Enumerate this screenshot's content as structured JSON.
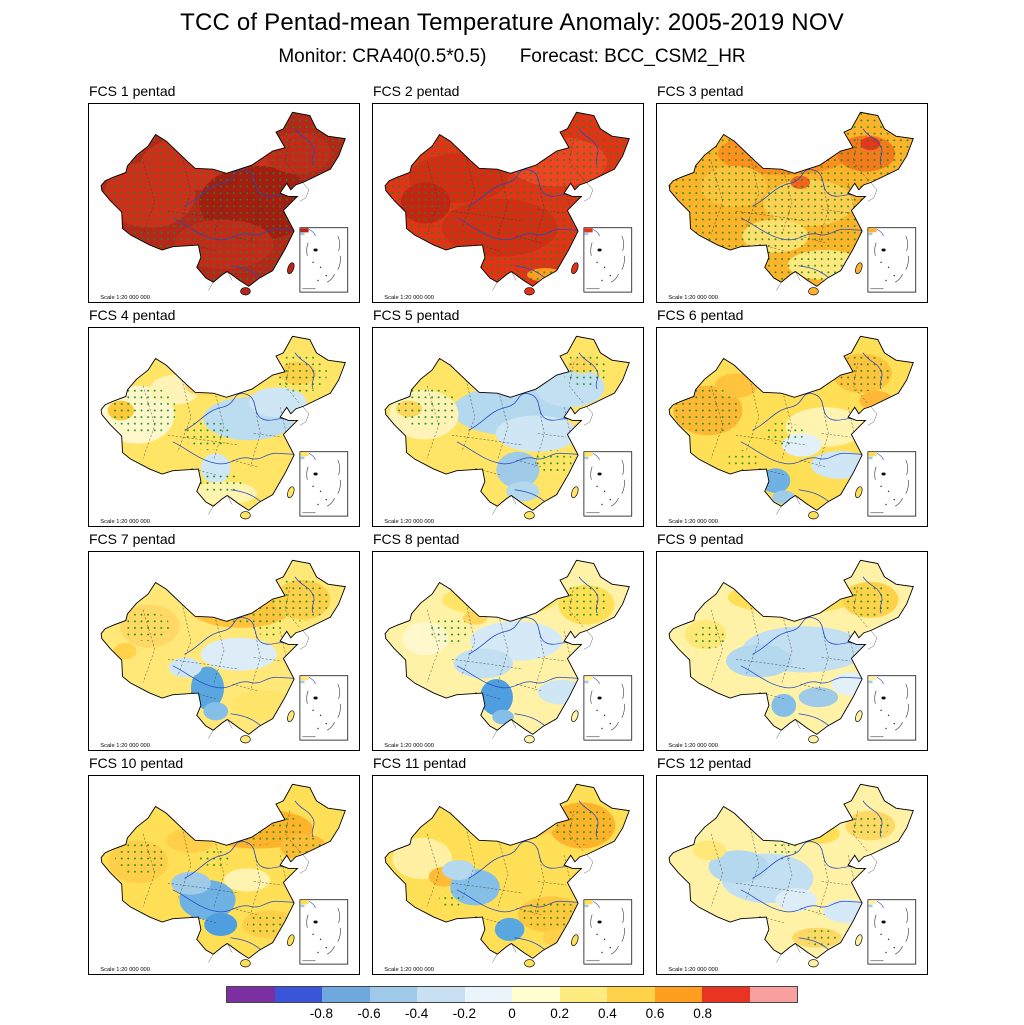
{
  "figure": {
    "title": "TCC of Pentad-mean Temperature Anomaly: 2005-2019 NOV",
    "monitor": "Monitor: CRA40(0.5*0.5)",
    "forecast": "Forecast: BCC_CSM2_HR",
    "scale_label": "Scale 1:20 000 000",
    "stipple_color": "#0f9410",
    "outline_color": "#000000",
    "river_color": "#1f49c7"
  },
  "panels": [
    {
      "label": "FCS 1 pentad",
      "base": "#b5261b",
      "stipple_full": true,
      "stipple_areas": [],
      "blobs": [
        [
          150,
          70,
          90,
          35,
          "#cf2e1d"
        ],
        [
          70,
          110,
          55,
          40,
          "#cf2e1d"
        ],
        [
          200,
          120,
          70,
          45,
          "#a51c12"
        ],
        [
          250,
          60,
          40,
          25,
          "#c42a1b"
        ],
        [
          160,
          170,
          60,
          30,
          "#c42a1b"
        ]
      ]
    },
    {
      "label": "FCS 2 pentad",
      "base": "#e13318",
      "stipple_full": true,
      "stipple_areas": [],
      "blobs": [
        [
          220,
          70,
          60,
          30,
          "#ef4423"
        ],
        [
          100,
          90,
          60,
          30,
          "#d62b15"
        ],
        [
          150,
          150,
          70,
          35,
          "#d62b15"
        ],
        [
          60,
          120,
          30,
          25,
          "#c42413"
        ],
        [
          205,
          207,
          22,
          8,
          "#ff9e1f"
        ]
      ]
    },
    {
      "label": "FCS 3 pentad",
      "base": "#ffb32b",
      "stipple_full": true,
      "stipple_areas": [],
      "blobs": [
        [
          150,
          60,
          80,
          26,
          "#ff9020"
        ],
        [
          250,
          60,
          35,
          22,
          "#f57a1c"
        ],
        [
          90,
          100,
          40,
          25,
          "#ffc33e"
        ],
        [
          180,
          120,
          55,
          28,
          "#ffcf52"
        ],
        [
          140,
          160,
          40,
          20,
          "#ffdf6e"
        ],
        [
          200,
          195,
          45,
          18,
          "#ffe87e"
        ],
        [
          255,
          48,
          12,
          8,
          "#e8351f"
        ],
        [
          170,
          95,
          12,
          8,
          "#f4641f"
        ]
      ]
    },
    {
      "label": "FCS 4 pentad",
      "base": "#ffe466",
      "stipple_full": false,
      "stipple_areas": [
        [
          253,
          55,
          32,
          24
        ],
        [
          62,
          100,
          40,
          30
        ],
        [
          140,
          130,
          28,
          18
        ],
        [
          155,
          188,
          26,
          14
        ]
      ],
      "blobs": [
        [
          55,
          105,
          45,
          35,
          "#fff8cd"
        ],
        [
          100,
          75,
          30,
          18,
          "#fff3b8"
        ],
        [
          190,
          110,
          55,
          26,
          "#bcdcf0"
        ],
        [
          225,
          90,
          35,
          18,
          "#cfe6f5"
        ],
        [
          250,
          55,
          22,
          14,
          "#ffcf4a"
        ],
        [
          35,
          100,
          16,
          12,
          "#ffc93e"
        ],
        [
          150,
          170,
          18,
          18,
          "#cfe6f5"
        ],
        [
          160,
          200,
          40,
          14,
          "#fff3b0"
        ],
        [
          135,
          70,
          22,
          12,
          "#ffd65a"
        ]
      ]
    },
    {
      "label": "FCS 5 pentad",
      "base": "#ffe466",
      "stipple_full": false,
      "stipple_areas": [
        [
          253,
          50,
          28,
          20
        ],
        [
          62,
          95,
          36,
          26
        ],
        [
          215,
          162,
          24,
          14
        ]
      ],
      "blobs": [
        [
          165,
          100,
          72,
          30,
          "#b4d8ee"
        ],
        [
          235,
          72,
          42,
          24,
          "#c3e0f2"
        ],
        [
          195,
          128,
          50,
          22,
          "#cfe6f5"
        ],
        [
          58,
          105,
          42,
          30,
          "#fff3b8"
        ],
        [
          172,
          172,
          26,
          22,
          "#9fcbe8"
        ],
        [
          178,
          198,
          20,
          12,
          "#b4d8ee"
        ],
        [
          40,
          98,
          16,
          10,
          "#ffd65a"
        ],
        [
          250,
          45,
          18,
          10,
          "#ffd65a"
        ]
      ]
    },
    {
      "label": "FCS 6 pentad",
      "base": "#ffdf55",
      "stipple_full": false,
      "stipple_areas": [
        [
          58,
          100,
          40,
          28
        ],
        [
          245,
          55,
          34,
          22
        ],
        [
          150,
          128,
          24,
          14
        ],
        [
          100,
          160,
          18,
          12
        ]
      ],
      "blobs": [
        [
          58,
          100,
          42,
          30,
          "#ffb835"
        ],
        [
          92,
          70,
          26,
          15,
          "#ffc33e"
        ],
        [
          245,
          55,
          36,
          24,
          "#ffc33e"
        ],
        [
          262,
          88,
          20,
          12,
          "#ffb835"
        ],
        [
          200,
          120,
          48,
          24,
          "#fff3b0"
        ],
        [
          218,
          166,
          35,
          17,
          "#cfe6f5"
        ],
        [
          140,
          185,
          18,
          15,
          "#6fb1e3"
        ],
        [
          150,
          205,
          14,
          8,
          "#9fcbe8"
        ],
        [
          172,
          142,
          24,
          14,
          "#e2f0f9"
        ]
      ]
    },
    {
      "label": "FCS 7 pentad",
      "base": "#ffe878",
      "stipple_full": false,
      "stipple_areas": [
        [
          252,
          58,
          36,
          26
        ],
        [
          182,
          68,
          48,
          18
        ],
        [
          66,
          90,
          28,
          18
        ],
        [
          215,
          90,
          20,
          12
        ]
      ],
      "blobs": [
        [
          180,
          68,
          62,
          24,
          "#ffc33e"
        ],
        [
          255,
          58,
          34,
          24,
          "#ffcf4a"
        ],
        [
          70,
          90,
          36,
          26,
          "#ffd865"
        ],
        [
          178,
          124,
          46,
          20,
          "#dcedf8"
        ],
        [
          140,
          165,
          20,
          26,
          "#5aa7e0"
        ],
        [
          150,
          193,
          15,
          11,
          "#85bfe8"
        ],
        [
          113,
          140,
          20,
          12,
          "#cfe6f5"
        ],
        [
          208,
          186,
          40,
          18,
          "#ffe46a"
        ],
        [
          40,
          120,
          14,
          10,
          "#ffd24a"
        ]
      ]
    },
    {
      "label": "FCS 8 pentad",
      "base": "#fff2a6",
      "stipple_full": false,
      "stipple_areas": [
        [
          252,
          60,
          30,
          22
        ],
        [
          90,
          95,
          24,
          16
        ],
        [
          160,
          60,
          30,
          14
        ]
      ],
      "blobs": [
        [
          170,
          108,
          56,
          24,
          "#d5eaf6"
        ],
        [
          130,
          135,
          36,
          18,
          "#c3e0f2"
        ],
        [
          146,
          176,
          20,
          22,
          "#4f9ee0"
        ],
        [
          154,
          200,
          13,
          9,
          "#85bfe8"
        ],
        [
          150,
          58,
          70,
          20,
          "#ffe466"
        ],
        [
          255,
          64,
          34,
          24,
          "#ffdf55"
        ],
        [
          226,
          170,
          30,
          15,
          "#cfe6f5"
        ],
        [
          120,
          80,
          15,
          8,
          "#ffd65a"
        ],
        [
          60,
          105,
          28,
          20,
          "#fff8cd"
        ]
      ]
    },
    {
      "label": "FCS 9 pentad",
      "base": "#fff2a6",
      "stipple_full": false,
      "stipple_areas": [
        [
          253,
          58,
          28,
          20
        ],
        [
          165,
          55,
          46,
          16
        ],
        [
          60,
          103,
          20,
          14
        ]
      ],
      "blobs": [
        [
          175,
          118,
          75,
          28,
          "#c3e0f2"
        ],
        [
          120,
          132,
          40,
          20,
          "#b4d8ee"
        ],
        [
          160,
          55,
          78,
          20,
          "#ffdf55"
        ],
        [
          255,
          58,
          34,
          22,
          "#ffd24a"
        ],
        [
          192,
          176,
          24,
          12,
          "#9fcbe8"
        ],
        [
          150,
          186,
          15,
          14,
          "#85bfe8"
        ],
        [
          232,
          160,
          24,
          14,
          "#e2f0f9"
        ],
        [
          55,
          100,
          25,
          18,
          "#ffe878"
        ]
      ]
    },
    {
      "label": "FCS 10 pentad",
      "base": "#ffdf55",
      "stipple_full": false,
      "stipple_areas": [
        [
          200,
          64,
          58,
          20
        ],
        [
          256,
          86,
          24,
          13
        ],
        [
          58,
          100,
          30,
          20
        ],
        [
          216,
          180,
          28,
          14
        ],
        [
          150,
          100,
          20,
          10
        ]
      ],
      "blobs": [
        [
          200,
          64,
          68,
          24,
          "#ffb32b"
        ],
        [
          256,
          86,
          28,
          16,
          "#ffbb35"
        ],
        [
          120,
          78,
          30,
          15,
          "#ffcf4a"
        ],
        [
          56,
          104,
          36,
          26,
          "#ffcf4a"
        ],
        [
          140,
          150,
          34,
          24,
          "#6fb1e3"
        ],
        [
          120,
          130,
          24,
          14,
          "#9fcbe8"
        ],
        [
          156,
          180,
          20,
          14,
          "#4f9ee0"
        ],
        [
          188,
          126,
          28,
          14,
          "#fff3b0"
        ],
        [
          216,
          180,
          34,
          17,
          "#ffcf4a"
        ]
      ]
    },
    {
      "label": "FCS 11 pentad",
      "base": "#ffdf55",
      "stipple_full": false,
      "stipple_areas": [
        [
          250,
          60,
          36,
          24
        ],
        [
          212,
          168,
          34,
          18
        ],
        [
          172,
          58,
          40,
          14
        ],
        [
          90,
          150,
          14,
          10
        ]
      ],
      "blobs": [
        [
          250,
          60,
          40,
          28,
          "#ffb32b"
        ],
        [
          170,
          58,
          50,
          18,
          "#ffcf4a"
        ],
        [
          56,
          100,
          36,
          25,
          "#fff0a4"
        ],
        [
          82,
          122,
          18,
          12,
          "#ffbb35"
        ],
        [
          120,
          135,
          30,
          22,
          "#85bfe8"
        ],
        [
          100,
          114,
          20,
          12,
          "#b4d8ee"
        ],
        [
          162,
          186,
          18,
          14,
          "#5aa7e0"
        ],
        [
          212,
          168,
          40,
          22,
          "#ffc83e"
        ],
        [
          226,
          196,
          24,
          11,
          "#ffcf4a"
        ]
      ]
    },
    {
      "label": "FCS 12 pentad",
      "base": "#fff2a6",
      "stipple_full": false,
      "stipple_areas": [
        [
          255,
          60,
          24,
          15
        ],
        [
          150,
          90,
          18,
          11
        ],
        [
          195,
          196,
          22,
          10
        ]
      ],
      "blobs": [
        [
          130,
          124,
          56,
          30,
          "#c3e0f2"
        ],
        [
          95,
          110,
          36,
          20,
          "#b4d8ee"
        ],
        [
          255,
          60,
          30,
          18,
          "#ffd865"
        ],
        [
          192,
          70,
          26,
          12,
          "#ffdf55"
        ],
        [
          190,
          196,
          30,
          12,
          "#ffd865"
        ],
        [
          226,
          164,
          28,
          14,
          "#d5eaf6"
        ],
        [
          165,
          150,
          25,
          14,
          "#dcedf8"
        ],
        [
          60,
          90,
          20,
          12,
          "#ffe878"
        ]
      ]
    }
  ],
  "colorbar": {
    "colors": [
      "#7b2fa0",
      "#3a55d9",
      "#6fa8dc",
      "#9ec9e8",
      "#c9e0f2",
      "#e9f4fb",
      "#ffffd2",
      "#ffec80",
      "#ffd24a",
      "#ff9e1f",
      "#ea3423",
      "#f8a0a0"
    ],
    "ticks": [
      "-0.8",
      "-0.6",
      "-0.4",
      "-0.2",
      "0",
      "0.2",
      "0.4",
      "0.6",
      "0.8"
    ]
  }
}
